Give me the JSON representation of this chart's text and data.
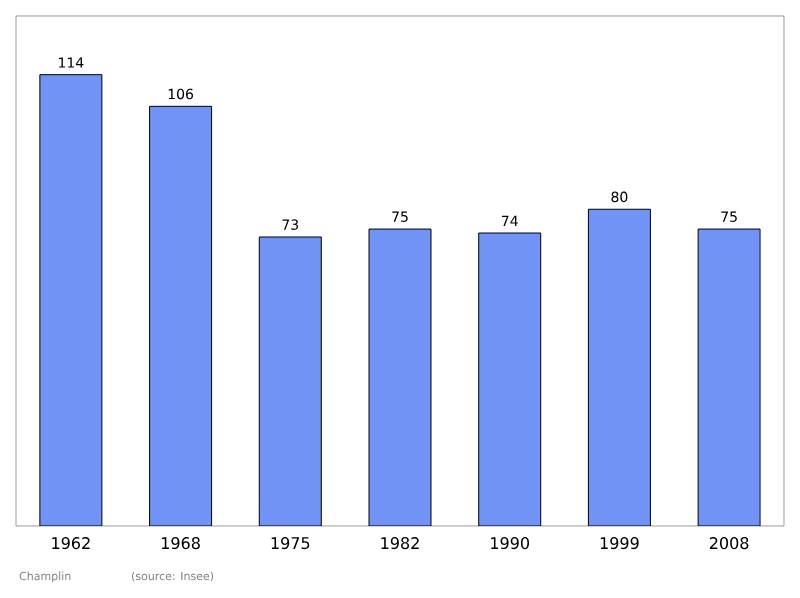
{
  "chart_data": {
    "type": "bar",
    "categories": [
      "1962",
      "1968",
      "1975",
      "1982",
      "1990",
      "1999",
      "2008"
    ],
    "values": [
      114,
      106,
      73,
      75,
      74,
      80,
      75
    ],
    "color": "#7093f5",
    "data_labels": true,
    "annotations": [
      "Champlin",
      "(source: Insee)"
    ]
  }
}
